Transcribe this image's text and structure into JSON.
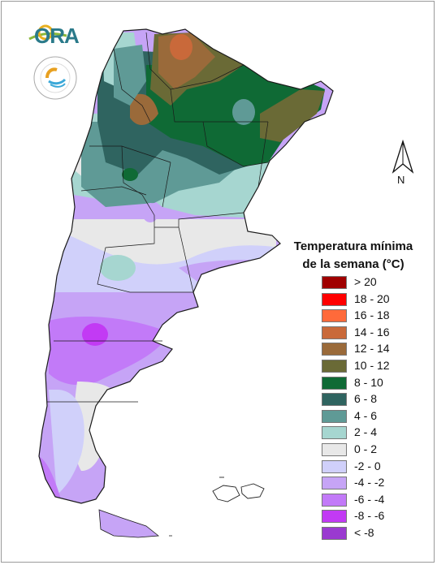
{
  "brand": {
    "logo_text": "ORA"
  },
  "compass": {
    "label": "N"
  },
  "legend": {
    "title_line1": "Temperatura mínima",
    "title_line2": "de la semana (°C)",
    "classes": [
      {
        "label": "> 20",
        "color": "#a00000"
      },
      {
        "label": "18 - 20",
        "color": "#ff0000"
      },
      {
        "label": "16 - 18",
        "color": "#ff6a3a"
      },
      {
        "label": "14 - 16",
        "color": "#c9693a"
      },
      {
        "label": "12 - 14",
        "color": "#9a6a3a"
      },
      {
        "label": "10 - 12",
        "color": "#6a6a36"
      },
      {
        "label": "8 - 10",
        "color": "#0f6a35"
      },
      {
        "label": "6 - 8",
        "color": "#2f6460"
      },
      {
        "label": "4 - 6",
        "color": "#5f9a96"
      },
      {
        "label": "2 - 4",
        "color": "#a6d6d0"
      },
      {
        "label": "0 - 2",
        "color": "#e8e8e8"
      },
      {
        "label": "-2 - 0",
        "color": "#d0d0fa"
      },
      {
        "label": "-4 - -2",
        "color": "#c6a4f6"
      },
      {
        "label": "-6 - -4",
        "color": "#c27af8"
      },
      {
        "label": "-8 - -6",
        "color": "#c23af4"
      },
      {
        "label": "< -8",
        "color": "#9a3ad0"
      }
    ]
  }
}
